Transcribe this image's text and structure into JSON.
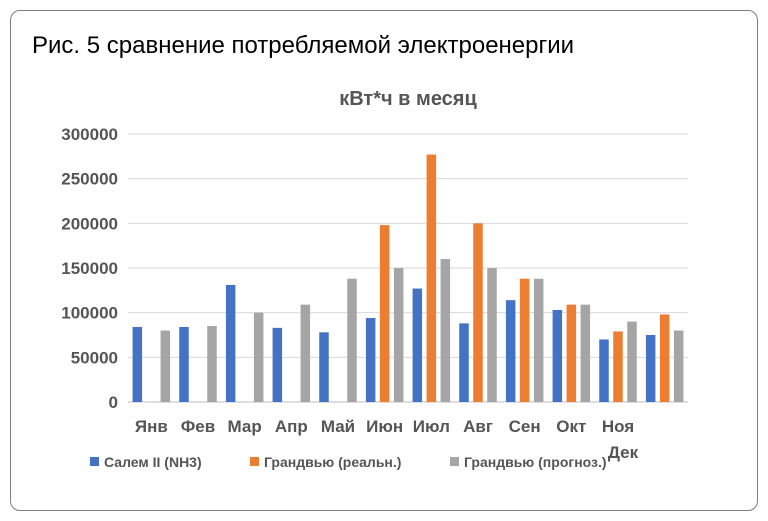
{
  "heading": "Рис. 5 сравнение потребляемой электроенергии",
  "chart_data": {
    "type": "bar",
    "title": "кВт*ч в месяц",
    "categories": [
      "Янв",
      "Фев",
      "Мар",
      "Апр",
      "Май",
      "Июн",
      "Июл",
      "Авг",
      "Сен",
      "Окт",
      "Ноя",
      "Дек"
    ],
    "tick_labels": [
      "0",
      "50000",
      "100000",
      "150000",
      "200000",
      "250000",
      "300000"
    ],
    "ylim": [
      0,
      300000
    ],
    "grid": true,
    "legend_position": "bottom",
    "series": [
      {
        "name": "Салем II (NH3)",
        "color": "#4472c4",
        "values": [
          84000,
          84000,
          131000,
          83000,
          78000,
          94000,
          127000,
          88000,
          114000,
          103000,
          70000,
          75000
        ]
      },
      {
        "name": "Грандвью (реальн.)",
        "color": "#ed7d31",
        "values": [
          null,
          null,
          null,
          null,
          null,
          198000,
          277000,
          200000,
          138000,
          109000,
          79000,
          98000
        ]
      },
      {
        "name": "Грандвью (прогноз.)",
        "color": "#a5a5a5",
        "values": [
          80000,
          85000,
          100000,
          109000,
          138000,
          150000,
          160000,
          150000,
          138000,
          109000,
          90000,
          80000
        ]
      }
    ]
  }
}
